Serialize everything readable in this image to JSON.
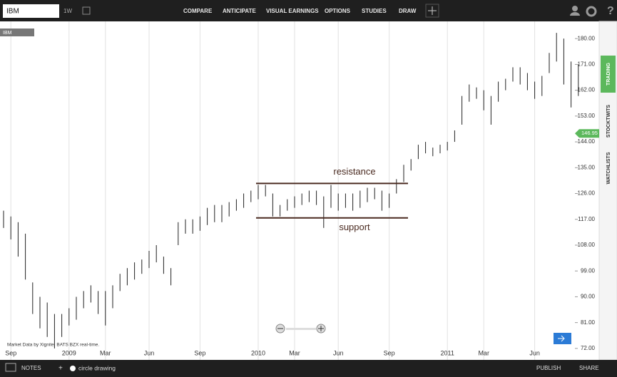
{
  "toolbar": {
    "symbol": "IBM",
    "interval": "1W",
    "menu": [
      "COMPARE",
      "ANTICIPATE",
      "VISUAL EARNINGS",
      "OPTIONS",
      "STUDIES",
      "DRAW"
    ]
  },
  "side_tabs": [
    "TRADING",
    "STOCKTWITS",
    "WATCHLISTS"
  ],
  "footer": {
    "notes": "NOTES",
    "tool": "circle drawing",
    "publish": "PUBLISH",
    "share": "SHARE"
  },
  "chart_data": {
    "type": "ohlc",
    "symbol_label": "IBM",
    "source": "Market Data by Xignite, BATS BZX real-time.",
    "categories": [
      null,
      "Sep",
      null,
      null,
      null,
      null,
      null,
      null,
      null,
      "2009",
      null,
      null,
      null,
      null,
      "Mar",
      null,
      null,
      null,
      null,
      null,
      "Jun",
      null,
      null,
      null,
      null,
      null,
      null,
      "Sep",
      null,
      null,
      null,
      null,
      null,
      null,
      null,
      "2010",
      null,
      null,
      null,
      null,
      "Mar",
      null,
      null,
      null,
      null,
      null,
      "Jun",
      null,
      null,
      null,
      null,
      null,
      null,
      "Sep",
      null,
      null,
      null,
      null,
      null,
      null,
      null,
      "2011",
      null,
      null,
      null,
      null,
      "Mar",
      null,
      null,
      null,
      null,
      null,
      null,
      "Jun",
      null,
      null,
      null,
      null,
      null,
      null
    ],
    "series": [
      {
        "name": "low",
        "values": [
          114,
          110,
          104,
          96,
          84,
          79,
          76,
          72,
          76,
          80,
          82,
          86,
          88,
          84,
          80,
          86,
          92,
          94,
          96,
          98,
          100,
          102,
          98,
          94,
          108,
          112,
          112,
          113,
          115,
          116,
          116,
          118,
          120,
          121,
          123,
          124,
          125,
          118,
          118,
          120,
          121,
          122,
          123,
          122,
          114,
          121,
          120,
          121,
          120,
          121,
          123,
          124,
          120,
          121,
          126,
          130,
          134,
          138,
          140,
          139,
          140,
          141,
          144,
          150,
          158,
          159,
          155,
          150,
          158,
          162,
          165,
          164,
          162,
          159,
          160,
          168,
          172,
          164,
          156,
          160
        ]
      },
      {
        "name": "high",
        "values": [
          120,
          118,
          116,
          112,
          95,
          90,
          88,
          84,
          84,
          86,
          90,
          92,
          94,
          92,
          92,
          94,
          98,
          100,
          102,
          103,
          106,
          108,
          104,
          100,
          116,
          117,
          117,
          118,
          121,
          122,
          122,
          123,
          124,
          126,
          127,
          129,
          129,
          126,
          122,
          124,
          125,
          126,
          127,
          127,
          125,
          129,
          126,
          126,
          126,
          127,
          128,
          128,
          127,
          126,
          131,
          136,
          138,
          143,
          144,
          142,
          143,
          144,
          148,
          160,
          164,
          163,
          162,
          160,
          165,
          166,
          170,
          170,
          168,
          165,
          167,
          175,
          182,
          180,
          172,
          171
        ]
      }
    ],
    "color": "#222222",
    "ylim": [
      68,
      186
    ],
    "yticks": [
      {
        "value": 72,
        "label": "72.00"
      },
      {
        "value": 81,
        "label": "81.00"
      },
      {
        "value": 90,
        "label": "90.00"
      },
      {
        "value": 99,
        "label": "99.00"
      },
      {
        "value": 108,
        "label": "108.00"
      },
      {
        "value": 117,
        "label": "117.00"
      },
      {
        "value": 126,
        "label": "126.00"
      },
      {
        "value": 135,
        "label": "135.00"
      },
      {
        "value": 144,
        "label": "144.00"
      },
      {
        "value": 153,
        "label": "153.00"
      },
      {
        "value": 162,
        "label": "162.00"
      },
      {
        "value": 171,
        "label": "171.00"
      },
      {
        "value": 180,
        "label": "180.00"
      }
    ],
    "last_price": {
      "value": 146.95,
      "label": "146.95"
    },
    "annotations": [
      {
        "text": "resistance",
        "value": 129.5
      },
      {
        "text": "support",
        "value": 117.5
      }
    ],
    "grid": true
  }
}
